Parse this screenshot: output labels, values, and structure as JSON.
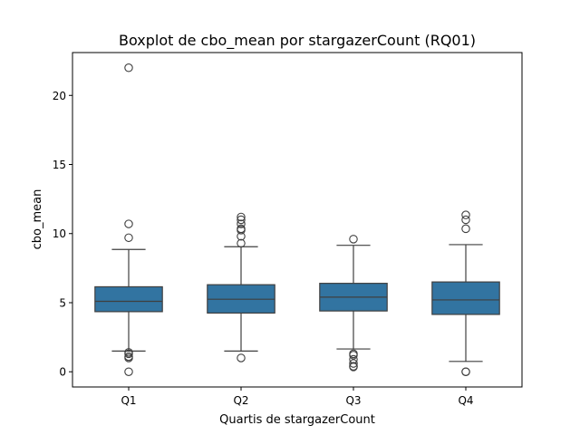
{
  "chart_data": {
    "type": "boxplot",
    "title": "Boxplot de cbo_mean por stargazerCount (RQ01)",
    "xlabel": "Quartis de stargazerCount",
    "ylabel": "cbo_mean",
    "categories": [
      "Q1",
      "Q2",
      "Q3",
      "Q4"
    ],
    "ylim": [
      -1.1,
      23.1
    ],
    "yticks": [
      0,
      5,
      10,
      15,
      20
    ],
    "ytick_labels": [
      "0",
      "5",
      "10",
      "15",
      "20"
    ],
    "grid": false,
    "box_color": "#3274a1",
    "boxes": [
      {
        "category": "Q1",
        "whisker_low": 1.5,
        "q1": 4.35,
        "median": 5.1,
        "q3": 6.15,
        "whisker_high": 8.85,
        "outliers": [
          22.0,
          10.7,
          9.7,
          1.4,
          1.3,
          1.1,
          1.0,
          0.0
        ]
      },
      {
        "category": "Q2",
        "whisker_low": 1.5,
        "q1": 4.25,
        "median": 5.25,
        "q3": 6.3,
        "whisker_high": 9.05,
        "outliers": [
          11.2,
          11.0,
          10.7,
          10.35,
          10.25,
          9.8,
          9.3,
          1.0
        ]
      },
      {
        "category": "Q3",
        "whisker_low": 1.65,
        "q1": 4.4,
        "median": 5.4,
        "q3": 6.4,
        "whisker_high": 9.15,
        "outliers": [
          9.6,
          1.3,
          1.2,
          0.9,
          0.6,
          0.4,
          0.35
        ]
      },
      {
        "category": "Q4",
        "whisker_low": 0.75,
        "q1": 4.15,
        "median": 5.2,
        "q3": 6.5,
        "whisker_high": 9.2,
        "outliers": [
          11.35,
          11.0,
          10.35,
          0.0,
          0.0
        ]
      }
    ]
  }
}
